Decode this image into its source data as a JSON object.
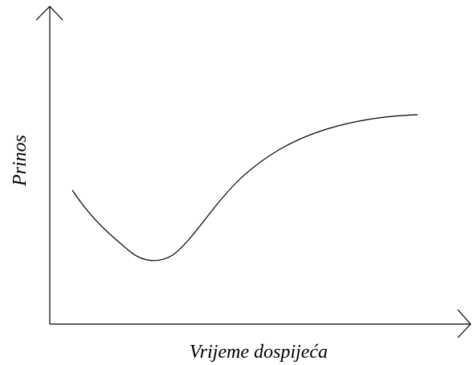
{
  "y_axis": {
    "label": "Prinos"
  },
  "x_axis": {
    "label": "Vrijeme dospijeća"
  }
}
